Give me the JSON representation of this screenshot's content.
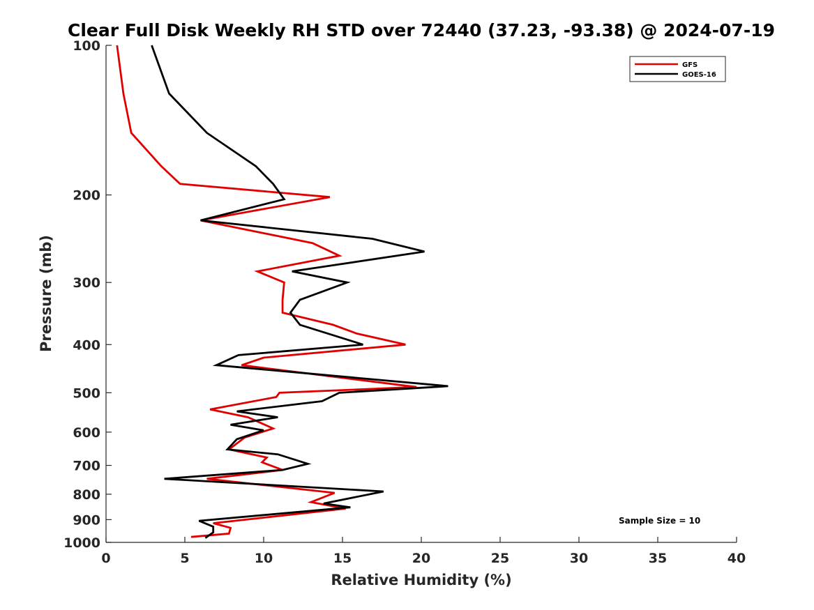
{
  "chart_data": {
    "type": "line",
    "title": "Clear Full Disk Weekly RH STD over 72440 (37.23, -93.38) @ 2024-07-19",
    "xlabel": "Relative Humidity (%)",
    "ylabel": "Pressure (mb)",
    "xlim": [
      0,
      40
    ],
    "ylim": [
      1000,
      100
    ],
    "y_scale": "log",
    "y_reversed": true,
    "grid": false,
    "legend_position": "top-right",
    "x_ticks": [
      0,
      5,
      10,
      15,
      20,
      25,
      30,
      35,
      40
    ],
    "y_ticks": [
      100,
      200,
      300,
      400,
      500,
      600,
      700,
      800,
      900,
      1000
    ],
    "annotation": "Sample Size = 10",
    "series": [
      {
        "name": "GFS",
        "color": "#e00000",
        "points": [
          [
            0.7,
            100
          ],
          [
            1.1,
            125
          ],
          [
            1.6,
            150
          ],
          [
            3.5,
            175
          ],
          [
            4.7,
            190
          ],
          [
            14.2,
            202
          ],
          [
            6.0,
            225
          ],
          [
            13.1,
            250
          ],
          [
            14.8,
            265
          ],
          [
            9.6,
            285
          ],
          [
            11.3,
            300
          ],
          [
            11.2,
            325
          ],
          [
            11.2,
            345
          ],
          [
            14.4,
            365
          ],
          [
            15.9,
            380
          ],
          [
            19.0,
            400
          ],
          [
            10.0,
            425
          ],
          [
            8.6,
            440
          ],
          [
            19.7,
            487
          ],
          [
            11.0,
            500
          ],
          [
            10.8,
            510
          ],
          [
            6.6,
            540
          ],
          [
            9.0,
            560
          ],
          [
            10.6,
            590
          ],
          [
            8.8,
            615
          ],
          [
            7.8,
            650
          ],
          [
            10.2,
            675
          ],
          [
            9.9,
            690
          ],
          [
            11.2,
            715
          ],
          [
            6.4,
            745
          ],
          [
            14.5,
            795
          ],
          [
            13.0,
            830
          ],
          [
            15.2,
            855
          ],
          [
            6.8,
            915
          ],
          [
            7.9,
            935
          ],
          [
            7.8,
            960
          ],
          [
            5.4,
            975
          ]
        ]
      },
      {
        "name": "GOES-16",
        "color": "#000000",
        "points": [
          [
            2.9,
            100
          ],
          [
            4.0,
            125
          ],
          [
            6.4,
            150
          ],
          [
            9.5,
            175
          ],
          [
            10.6,
            190
          ],
          [
            11.3,
            204
          ],
          [
            6.0,
            225
          ],
          [
            16.9,
            245
          ],
          [
            20.2,
            260
          ],
          [
            11.8,
            285
          ],
          [
            15.3,
            300
          ],
          [
            12.3,
            325
          ],
          [
            11.7,
            345
          ],
          [
            12.3,
            365
          ],
          [
            16.3,
            400
          ],
          [
            8.4,
            420
          ],
          [
            7.0,
            440
          ],
          [
            21.7,
            485
          ],
          [
            14.8,
            500
          ],
          [
            13.7,
            520
          ],
          [
            8.3,
            545
          ],
          [
            10.9,
            560
          ],
          [
            7.9,
            580
          ],
          [
            10.0,
            595
          ],
          [
            8.3,
            620
          ],
          [
            7.7,
            650
          ],
          [
            10.9,
            665
          ],
          [
            12.8,
            695
          ],
          [
            11.2,
            715
          ],
          [
            3.7,
            745
          ],
          [
            17.6,
            790
          ],
          [
            13.8,
            835
          ],
          [
            15.5,
            850
          ],
          [
            5.9,
            905
          ],
          [
            6.8,
            930
          ],
          [
            6.8,
            955
          ],
          [
            6.3,
            980
          ]
        ]
      }
    ]
  }
}
